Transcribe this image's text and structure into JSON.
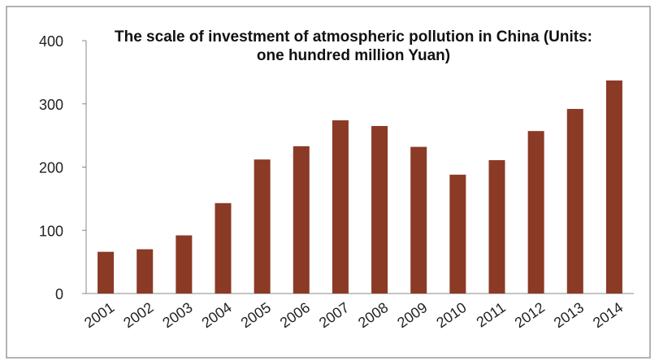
{
  "chart_data": {
    "type": "bar",
    "title": "The scale of investment of atmospheric pollution in China (Units: one hundred million Yuan)",
    "categories": [
      "2001",
      "2002",
      "2003",
      "2004",
      "2005",
      "2006",
      "2007",
      "2008",
      "2009",
      "2010",
      "2011",
      "2012",
      "2013",
      "2014"
    ],
    "values": [
      66,
      70,
      92,
      143,
      212,
      233,
      274,
      265,
      232,
      188,
      211,
      257,
      292,
      337
    ],
    "color": "#8b3a26",
    "ylim": [
      0,
      400
    ],
    "yticks": [
      0,
      100,
      200,
      300,
      400
    ],
    "grid": false
  }
}
